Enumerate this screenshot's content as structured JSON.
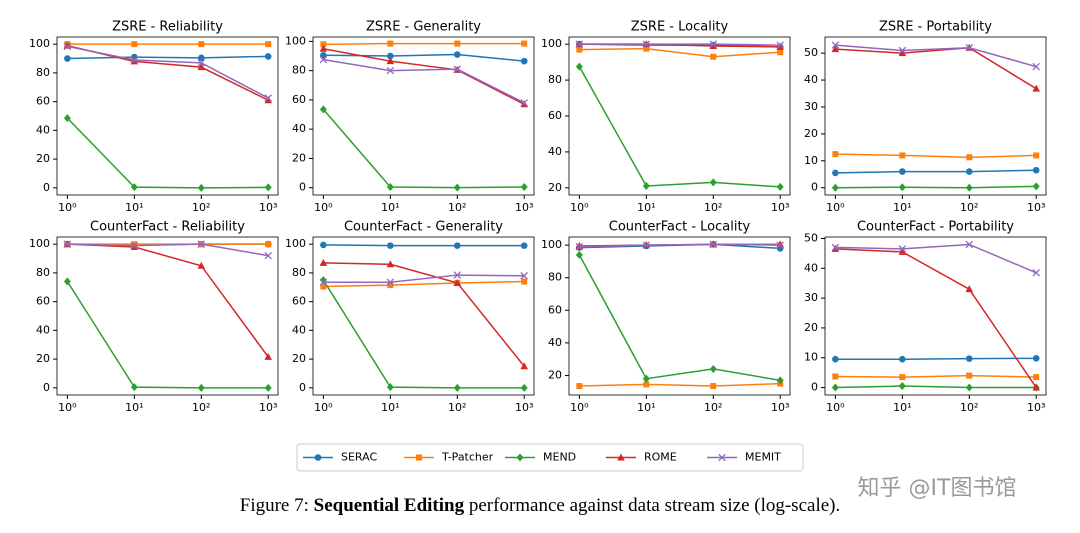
{
  "chart_data": [
    {
      "type": "line",
      "title": "ZSRE - Reliability",
      "x": [
        1,
        10,
        100,
        1000
      ],
      "xscale": "log",
      "xlim": [
        0.7,
        1400
      ],
      "xticks": [
        {
          "value": 1,
          "label": "10⁰"
        },
        {
          "value": 10,
          "label": "10¹"
        },
        {
          "value": 100,
          "label": "10²"
        },
        {
          "value": 1000,
          "label": "10³"
        }
      ],
      "ylim": [
        -5,
        105
      ],
      "yticks": [
        0,
        20,
        40,
        60,
        80,
        100
      ],
      "series": [
        {
          "values": [
            90,
            91,
            90.5,
            91.5
          ]
        },
        {
          "values": [
            100,
            100,
            100,
            100
          ]
        },
        {
          "values": [
            48.5,
            0.5,
            0,
            0.3
          ]
        },
        {
          "values": [
            99,
            88,
            84,
            61
          ]
        },
        {
          "values": [
            98.5,
            89,
            87,
            62.5
          ]
        }
      ]
    },
    {
      "type": "line",
      "title": "ZSRE - Generality",
      "x": [
        1,
        10,
        100,
        1000
      ],
      "xscale": "log",
      "xlim": [
        0.7,
        1400
      ],
      "xticks": [
        {
          "value": 1,
          "label": "10⁰"
        },
        {
          "value": 10,
          "label": "10¹"
        },
        {
          "value": 100,
          "label": "10²"
        },
        {
          "value": 1000,
          "label": "10³"
        }
      ],
      "ylim": [
        -5,
        103
      ],
      "yticks": [
        0,
        20,
        40,
        60,
        80,
        100
      ],
      "series": [
        {
          "values": [
            90.5,
            90,
            91,
            86.5
          ]
        },
        {
          "values": [
            98,
            98.5,
            98.5,
            98.5
          ]
        },
        {
          "values": [
            53.5,
            0.5,
            0,
            0.5
          ]
        },
        {
          "values": [
            95,
            86.5,
            80.5,
            57
          ]
        },
        {
          "values": [
            87.5,
            80,
            81,
            58
          ]
        }
      ]
    },
    {
      "type": "line",
      "title": "ZSRE - Locality",
      "x": [
        1,
        10,
        100,
        1000
      ],
      "xscale": "log",
      "xlim": [
        0.7,
        1400
      ],
      "xticks": [
        {
          "value": 1,
          "label": "10⁰"
        },
        {
          "value": 10,
          "label": "10¹"
        },
        {
          "value": 100,
          "label": "10²"
        },
        {
          "value": 1000,
          "label": "10³"
        }
      ],
      "ylim": [
        16,
        104
      ],
      "yticks": [
        20,
        40,
        60,
        80,
        100
      ],
      "series": [
        {
          "values": [
            100,
            99.5,
            99.5,
            98.5
          ]
        },
        {
          "values": [
            97,
            97.5,
            93,
            95.5
          ]
        },
        {
          "values": [
            87.5,
            21,
            23,
            20.5
          ]
        },
        {
          "values": [
            100,
            100,
            99,
            98.5
          ]
        },
        {
          "values": [
            100,
            100,
            100,
            99.5
          ]
        }
      ]
    },
    {
      "type": "line",
      "title": "ZSRE - Portability",
      "x": [
        1,
        10,
        100,
        1000
      ],
      "xscale": "log",
      "xlim": [
        0.7,
        1400
      ],
      "xticks": [
        {
          "value": 1,
          "label": "10⁰"
        },
        {
          "value": 10,
          "label": "10¹"
        },
        {
          "value": 100,
          "label": "10²"
        },
        {
          "value": 1000,
          "label": "10³"
        }
      ],
      "ylim": [
        -2.7,
        56
      ],
      "yticks": [
        0,
        10,
        20,
        30,
        40,
        50
      ],
      "series": [
        {
          "values": [
            5.5,
            6,
            6,
            6.5
          ]
        },
        {
          "values": [
            12.5,
            12,
            11.3,
            12
          ]
        },
        {
          "values": [
            0,
            0.2,
            0,
            0.5
          ]
        },
        {
          "values": [
            51.5,
            50,
            52,
            36.8
          ]
        },
        {
          "values": [
            53,
            51,
            52,
            45
          ]
        }
      ]
    },
    {
      "type": "line",
      "title": "CounterFact - Reliability",
      "x": [
        1,
        10,
        100,
        1000
      ],
      "xscale": "log",
      "xlim": [
        0.7,
        1400
      ],
      "xticks": [
        {
          "value": 1,
          "label": "10⁰"
        },
        {
          "value": 10,
          "label": "10¹"
        },
        {
          "value": 100,
          "label": "10²"
        },
        {
          "value": 1000,
          "label": "10³"
        }
      ],
      "ylim": [
        -5,
        105
      ],
      "yticks": [
        0,
        20,
        40,
        60,
        80,
        100
      ],
      "series": [
        {
          "values": [
            100,
            99.5,
            100,
            100
          ]
        },
        {
          "values": [
            100,
            100,
            100,
            100
          ]
        },
        {
          "values": [
            74,
            0.5,
            0,
            0
          ]
        },
        {
          "values": [
            100,
            98,
            85,
            21.5
          ]
        },
        {
          "values": [
            100,
            99,
            100,
            92
          ]
        }
      ]
    },
    {
      "type": "line",
      "title": "CounterFact - Generality",
      "x": [
        1,
        10,
        100,
        1000
      ],
      "xscale": "log",
      "xlim": [
        0.7,
        1400
      ],
      "xticks": [
        {
          "value": 1,
          "label": "10⁰"
        },
        {
          "value": 10,
          "label": "10¹"
        },
        {
          "value": 100,
          "label": "10²"
        },
        {
          "value": 1000,
          "label": "10³"
        }
      ],
      "ylim": [
        -5,
        105
      ],
      "yticks": [
        0,
        20,
        40,
        60,
        80,
        100
      ],
      "series": [
        {
          "values": [
            99.5,
            99,
            99,
            99
          ]
        },
        {
          "values": [
            70.5,
            71.5,
            73,
            74
          ]
        },
        {
          "values": [
            75,
            0.5,
            0,
            0
          ]
        },
        {
          "values": [
            87,
            86,
            73,
            15
          ]
        },
        {
          "values": [
            73.5,
            73.5,
            78.5,
            78
          ]
        }
      ]
    },
    {
      "type": "line",
      "title": "CounterFact - Locality",
      "x": [
        1,
        10,
        100,
        1000
      ],
      "xscale": "log",
      "xlim": [
        0.7,
        1400
      ],
      "xticks": [
        {
          "value": 1,
          "label": "10⁰"
        },
        {
          "value": 10,
          "label": "10¹"
        },
        {
          "value": 100,
          "label": "10²"
        },
        {
          "value": 1000,
          "label": "10³"
        }
      ],
      "ylim": [
        8,
        105
      ],
      "yticks": [
        20,
        40,
        60,
        80,
        100
      ],
      "series": [
        {
          "values": [
            98.5,
            99.5,
            100.5,
            98
          ]
        },
        {
          "values": [
            13.5,
            14.5,
            13.5,
            15
          ]
        },
        {
          "values": [
            94,
            18,
            24,
            17
          ]
        },
        {
          "values": [
            99.5,
            100,
            100.5,
            100.5
          ]
        },
        {
          "values": [
            99,
            100,
            100.5,
            100
          ]
        }
      ]
    },
    {
      "type": "line",
      "title": "CounterFact - Portability",
      "x": [
        1,
        10,
        100,
        1000
      ],
      "xscale": "log",
      "xlim": [
        0.7,
        1400
      ],
      "xticks": [
        {
          "value": 1,
          "label": "10⁰"
        },
        {
          "value": 10,
          "label": "10¹"
        },
        {
          "value": 100,
          "label": "10²"
        },
        {
          "value": 1000,
          "label": "10³"
        }
      ],
      "ylim": [
        -2.5,
        50.5
      ],
      "yticks": [
        0,
        10,
        20,
        30,
        40,
        50
      ],
      "series": [
        {
          "values": [
            9.5,
            9.5,
            9.7,
            9.8
          ]
        },
        {
          "values": [
            3.7,
            3.5,
            4,
            3.5
          ]
        },
        {
          "values": [
            0,
            0.5,
            0,
            0
          ]
        },
        {
          "values": [
            46.5,
            45.5,
            33,
            0
          ]
        },
        {
          "values": [
            47,
            46.5,
            48,
            38.5
          ]
        }
      ]
    }
  ],
  "legend": {
    "series": [
      {
        "name": "SERAC",
        "color": "#1f77b4",
        "marker": "circle"
      },
      {
        "name": "T-Patcher",
        "color": "#ff7f0e",
        "marker": "square"
      },
      {
        "name": "MEND",
        "color": "#2ca02c",
        "marker": "diamond"
      },
      {
        "name": "ROME",
        "color": "#d62728",
        "marker": "triangle"
      },
      {
        "name": "MEMIT",
        "color": "#9467bd",
        "marker": "x"
      }
    ]
  },
  "caption": {
    "label": "Figure 7:",
    "emphasis": "Sequential Editing",
    "text": "performance against data stream size (log-scale)."
  },
  "watermark": "知乎 @IT图书馆"
}
